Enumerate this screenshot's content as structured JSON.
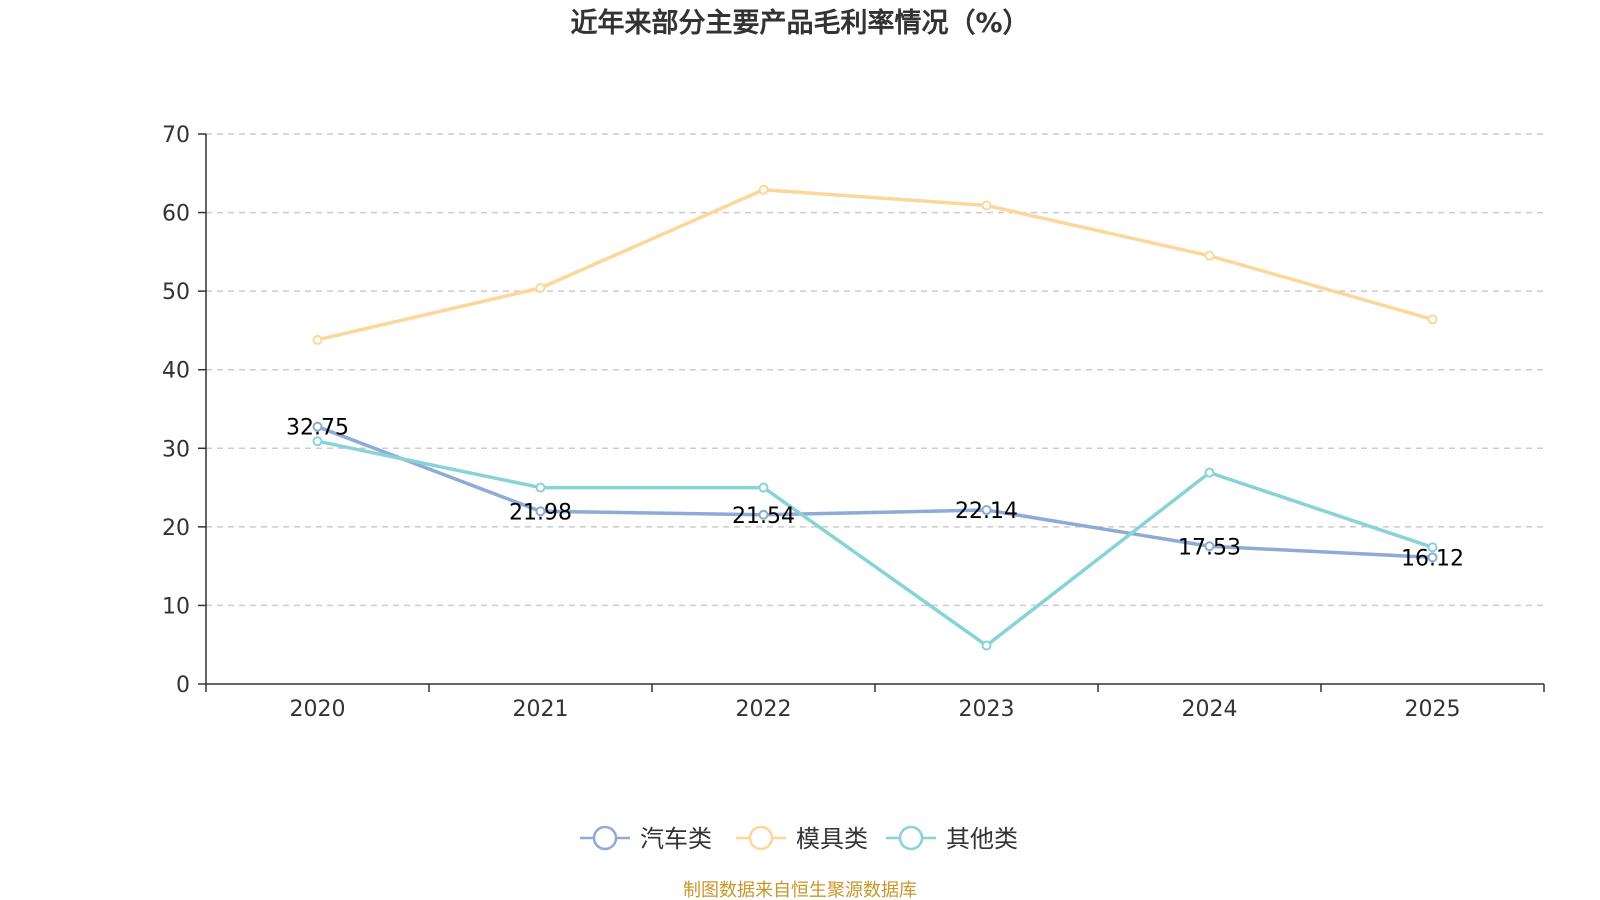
{
  "chart_data": {
    "type": "line",
    "title": "近年来部分主要产品毛利率情况（%）",
    "xlabel": "",
    "ylabel": "",
    "categories": [
      "2020",
      "2021",
      "2022",
      "2023",
      "2024",
      "2025"
    ],
    "ylim": [
      0,
      70
    ],
    "yticks": [
      0,
      10,
      20,
      30,
      40,
      50,
      60,
      70
    ],
    "grid": true,
    "legend_position": "bottom-center",
    "series": [
      {
        "name": "汽车类",
        "color": "#8eaad6",
        "values": [
          32.75,
          21.98,
          21.54,
          22.14,
          17.53,
          16.12
        ],
        "labels": [
          "32.75",
          "21.98",
          "21.54",
          "22.14",
          "17.53",
          "16.12"
        ],
        "show_labels": true
      },
      {
        "name": "模具类",
        "color": "#fbd89a",
        "values": [
          43.8,
          50.4,
          62.9,
          60.9,
          54.5,
          46.4
        ],
        "show_labels": false
      },
      {
        "name": "其他类",
        "color": "#88d3d6",
        "values": [
          30.9,
          25.0,
          25.0,
          4.9,
          26.9,
          17.4
        ],
        "show_labels": false
      }
    ],
    "source": "制图数据来自恒生聚源数据库"
  }
}
